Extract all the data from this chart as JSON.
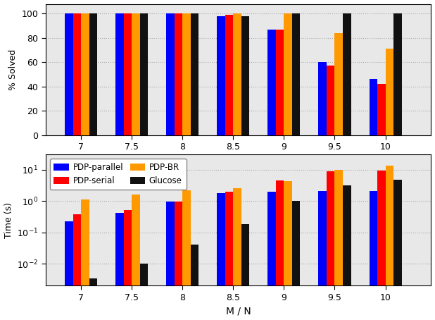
{
  "x_labels": [
    "7",
    "7.5",
    "8",
    "8.5",
    "9",
    "9.5",
    "10"
  ],
  "x_vals": [
    7.0,
    7.5,
    8.0,
    8.5,
    9.0,
    9.5,
    10.0
  ],
  "bar_order": [
    "PDP-parallel",
    "PDP-serial",
    "PDP-BR",
    "Glucose"
  ],
  "solved": {
    "PDP-parallel": [
      100,
      100,
      100,
      98,
      87,
      60,
      46
    ],
    "PDP-serial": [
      100,
      100,
      100,
      99,
      87,
      57,
      42
    ],
    "PDP-BR": [
      100,
      100,
      100,
      100,
      100,
      84,
      71
    ],
    "Glucose": [
      100,
      100,
      100,
      98,
      100,
      100,
      100
    ]
  },
  "time": {
    "PDP-parallel": [
      0.22,
      0.42,
      0.95,
      1.8,
      2.0,
      2.1,
      2.1
    ],
    "PDP-serial": [
      0.38,
      0.52,
      0.95,
      2.0,
      4.5,
      9.0,
      9.5
    ],
    "PDP-BR": [
      1.1,
      1.6,
      2.2,
      2.5,
      4.2,
      10.0,
      13.0
    ],
    "Glucose": [
      0.0035,
      0.01,
      0.042,
      0.18,
      1.0,
      3.2,
      4.8
    ]
  },
  "colors": {
    "PDP-parallel": "#0000ff",
    "PDP-serial": "#ff0000",
    "PDP-BR": "#ff9900",
    "Glucose": "#111111"
  },
  "bar_width": 0.08,
  "fig_bg": "#ffffff",
  "ax_bg": "#e8e8e8",
  "grid_color": "#aaaaaa",
  "legend_order_col1": [
    "PDP-parallel",
    "PDP-serial"
  ],
  "legend_order_col2": [
    "PDP-BR",
    "Glucose"
  ]
}
